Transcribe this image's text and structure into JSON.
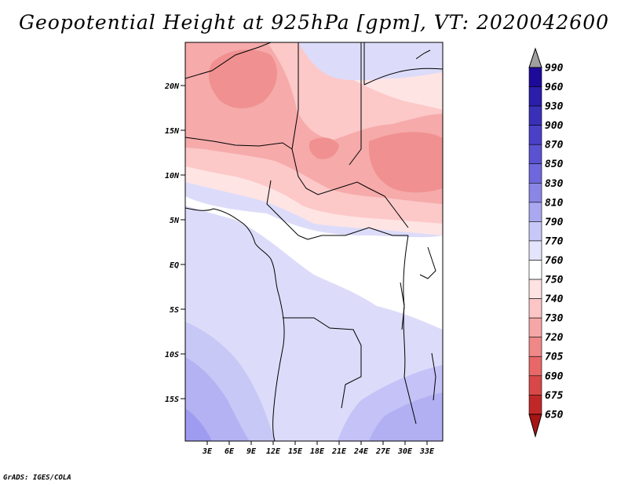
{
  "title": "Geopotential Height at 925hPa [gpm], VT: 2020042600",
  "credit": "GrADS: IGES/COLA",
  "map": {
    "lat_labels": [
      "20N",
      "15N",
      "10N",
      "5N",
      "EQ",
      "5S",
      "10S",
      "15S"
    ],
    "lon_labels": [
      "3E",
      "6E",
      "9E",
      "12E",
      "15E",
      "18E",
      "21E",
      "24E",
      "27E",
      "30E",
      "33E"
    ]
  },
  "colorbar": {
    "levels": [
      "990",
      "960",
      "930",
      "900",
      "870",
      "850",
      "830",
      "810",
      "790",
      "770",
      "760",
      "750",
      "740",
      "730",
      "720",
      "705",
      "690",
      "675",
      "650"
    ],
    "colors": [
      "#a0a0a0",
      "#1e0a9a",
      "#2a1eaa",
      "#3a30b8",
      "#4a40c8",
      "#5a52d0",
      "#6e68dc",
      "#8a86e6",
      "#aaa8f0",
      "#c8c8f8",
      "#e4e4fc",
      "#ffffff",
      "#ffe2e2",
      "#fcc6c6",
      "#f6a6a6",
      "#f08888",
      "#e86868",
      "#d84848",
      "#c02828",
      "#a81414"
    ]
  }
}
